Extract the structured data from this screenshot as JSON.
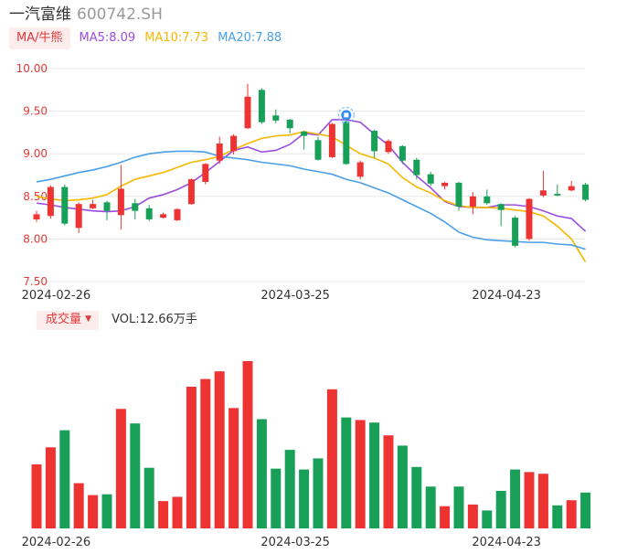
{
  "header": {
    "stock_name": "一汽富维",
    "stock_code": "600742.SH"
  },
  "legend": {
    "badge_label": "MA/牛熊",
    "ma5": "MA5:8.09",
    "ma10": "MA10:7.73",
    "ma20": "MA20:7.88"
  },
  "volume_legend": {
    "badge_label": "成交量",
    "vol_text": "VOL:12.66万手"
  },
  "colors": {
    "up": "#ee3333",
    "down": "#18a058",
    "ma5": "#9b4de0",
    "ma10": "#f5b800",
    "ma20": "#4a9fe8",
    "grid": "#e8e8e8",
    "axis_text": "#333333",
    "price_tick": "#e03a3a"
  },
  "chart_data": [
    {
      "type": "candlestick",
      "yticks": [
        "10.00",
        "9.50",
        "9.00",
        "8.50",
        "8.00",
        "7.50"
      ],
      "ylim": [
        7.5,
        10.0
      ],
      "xlabels": [
        "2024-02-26",
        "2024-03-25",
        "2024-04-23"
      ],
      "xlabel_index": [
        1,
        18,
        33
      ],
      "marker_index": 22,
      "candles": [
        {
          "o": 8.23,
          "c": 8.29,
          "h": 8.33,
          "l": 8.2
        },
        {
          "o": 8.27,
          "c": 8.61,
          "h": 8.63,
          "l": 8.24
        },
        {
          "o": 8.61,
          "c": 8.18,
          "h": 8.64,
          "l": 8.16
        },
        {
          "o": 8.13,
          "c": 8.41,
          "h": 8.43,
          "l": 8.07
        },
        {
          "o": 8.36,
          "c": 8.41,
          "h": 8.46,
          "l": 8.35
        },
        {
          "o": 8.43,
          "c": 8.33,
          "h": 8.45,
          "l": 8.22
        },
        {
          "o": 8.28,
          "c": 8.59,
          "h": 8.87,
          "l": 8.11
        },
        {
          "o": 8.42,
          "c": 8.33,
          "h": 8.47,
          "l": 8.23
        },
        {
          "o": 8.36,
          "c": 8.23,
          "h": 8.4,
          "l": 8.21
        },
        {
          "o": 8.25,
          "c": 8.29,
          "h": 8.31,
          "l": 8.24
        },
        {
          "o": 8.22,
          "c": 8.35,
          "h": 8.36,
          "l": 8.21
        },
        {
          "o": 8.41,
          "c": 8.7,
          "h": 8.71,
          "l": 8.4
        },
        {
          "o": 8.67,
          "c": 8.88,
          "h": 8.89,
          "l": 8.64
        },
        {
          "o": 8.92,
          "c": 9.12,
          "h": 9.2,
          "l": 8.88
        },
        {
          "o": 9.03,
          "c": 9.21,
          "h": 9.23,
          "l": 8.99
        },
        {
          "o": 9.3,
          "c": 9.67,
          "h": 9.82,
          "l": 9.29
        },
        {
          "o": 9.75,
          "c": 9.37,
          "h": 9.77,
          "l": 9.35
        },
        {
          "o": 9.45,
          "c": 9.39,
          "h": 9.52,
          "l": 9.36
        },
        {
          "o": 9.4,
          "c": 9.3,
          "h": 9.41,
          "l": 9.24
        },
        {
          "o": 9.26,
          "c": 9.21,
          "h": 9.27,
          "l": 9.05
        },
        {
          "o": 9.16,
          "c": 8.93,
          "h": 9.2,
          "l": 8.92
        },
        {
          "o": 8.96,
          "c": 9.35,
          "h": 9.36,
          "l": 8.95
        },
        {
          "o": 9.38,
          "c": 8.88,
          "h": 9.39,
          "l": 8.87
        },
        {
          "o": 8.73,
          "c": 8.9,
          "h": 8.92,
          "l": 8.7
        },
        {
          "o": 9.27,
          "c": 9.03,
          "h": 9.28,
          "l": 8.95
        },
        {
          "o": 9.02,
          "c": 9.15,
          "h": 9.17,
          "l": 9.0
        },
        {
          "o": 9.09,
          "c": 8.92,
          "h": 9.1,
          "l": 8.88
        },
        {
          "o": 8.93,
          "c": 8.75,
          "h": 8.95,
          "l": 8.7
        },
        {
          "o": 8.76,
          "c": 8.65,
          "h": 8.79,
          "l": 8.62
        },
        {
          "o": 8.62,
          "c": 8.66,
          "h": 8.67,
          "l": 8.58
        },
        {
          "o": 8.66,
          "c": 8.38,
          "h": 8.67,
          "l": 8.33
        },
        {
          "o": 8.38,
          "c": 8.5,
          "h": 8.55,
          "l": 8.29
        },
        {
          "o": 8.5,
          "c": 8.42,
          "h": 8.58,
          "l": 8.4
        },
        {
          "o": 8.41,
          "c": 8.34,
          "h": 8.42,
          "l": 8.15
        },
        {
          "o": 8.25,
          "c": 7.92,
          "h": 8.27,
          "l": 7.9
        },
        {
          "o": 8.0,
          "c": 8.47,
          "h": 8.48,
          "l": 7.98
        },
        {
          "o": 8.51,
          "c": 8.57,
          "h": 8.8,
          "l": 8.49
        },
        {
          "o": 8.53,
          "c": 8.51,
          "h": 8.64,
          "l": 8.5
        },
        {
          "o": 8.57,
          "c": 8.62,
          "h": 8.68,
          "l": 8.56
        },
        {
          "o": 8.64,
          "c": 8.46,
          "h": 8.66,
          "l": 8.44
        }
      ],
      "series": [
        {
          "name": "MA5",
          "values": [
            8.42,
            8.4,
            8.37,
            8.35,
            8.33,
            8.32,
            8.33,
            8.38,
            8.48,
            8.52,
            8.58,
            8.66,
            8.78,
            8.91,
            9.04,
            9.08,
            9.02,
            9.04,
            9.11,
            9.24,
            9.22,
            9.4,
            9.4,
            9.37,
            9.23,
            9.1,
            8.9,
            8.74,
            8.6,
            8.44,
            8.38,
            8.37,
            8.37,
            8.4,
            8.4,
            8.38,
            8.33,
            8.27,
            8.24,
            8.09
          ]
        },
        {
          "name": "MA10",
          "values": [
            8.5,
            8.47,
            8.45,
            8.46,
            8.48,
            8.52,
            8.62,
            8.7,
            8.74,
            8.78,
            8.84,
            8.9,
            8.93,
            8.97,
            9.05,
            9.12,
            9.18,
            9.21,
            9.22,
            9.26,
            9.23,
            9.2,
            9.1,
            9.0,
            8.95,
            8.88,
            8.72,
            8.61,
            8.54,
            8.45,
            8.39,
            8.37,
            8.37,
            8.36,
            8.34,
            8.32,
            8.27,
            8.15,
            8.0,
            7.73
          ]
        },
        {
          "name": "MA20",
          "values": [
            8.67,
            8.7,
            8.74,
            8.78,
            8.81,
            8.85,
            8.9,
            8.96,
            9.0,
            9.02,
            9.03,
            9.03,
            9.02,
            8.97,
            8.95,
            8.93,
            8.9,
            8.88,
            8.86,
            8.82,
            8.79,
            8.76,
            8.7,
            8.66,
            8.6,
            8.54,
            8.46,
            8.38,
            8.3,
            8.2,
            8.08,
            8.02,
            7.99,
            7.98,
            7.97,
            7.96,
            7.96,
            7.94,
            7.93,
            7.88
          ]
        }
      ]
    },
    {
      "type": "bar",
      "title": "成交量",
      "values": [
        7.5,
        9.5,
        11.5,
        5.3,
        3.9,
        4.0,
        14.0,
        12.3,
        7.1,
        3.2,
        3.7,
        16.6,
        17.5,
        18.4,
        14.1,
        19.6,
        12.8,
        7.0,
        9.2,
        6.9,
        8.2,
        16.3,
        13.0,
        12.7,
        12.4,
        10.9,
        9.7,
        7.2,
        4.9,
        2.6,
        4.9,
        2.8,
        2.1,
        4.4,
        6.9,
        6.6,
        6.4,
        2.7,
        3.3,
        4.2
      ]
    }
  ]
}
